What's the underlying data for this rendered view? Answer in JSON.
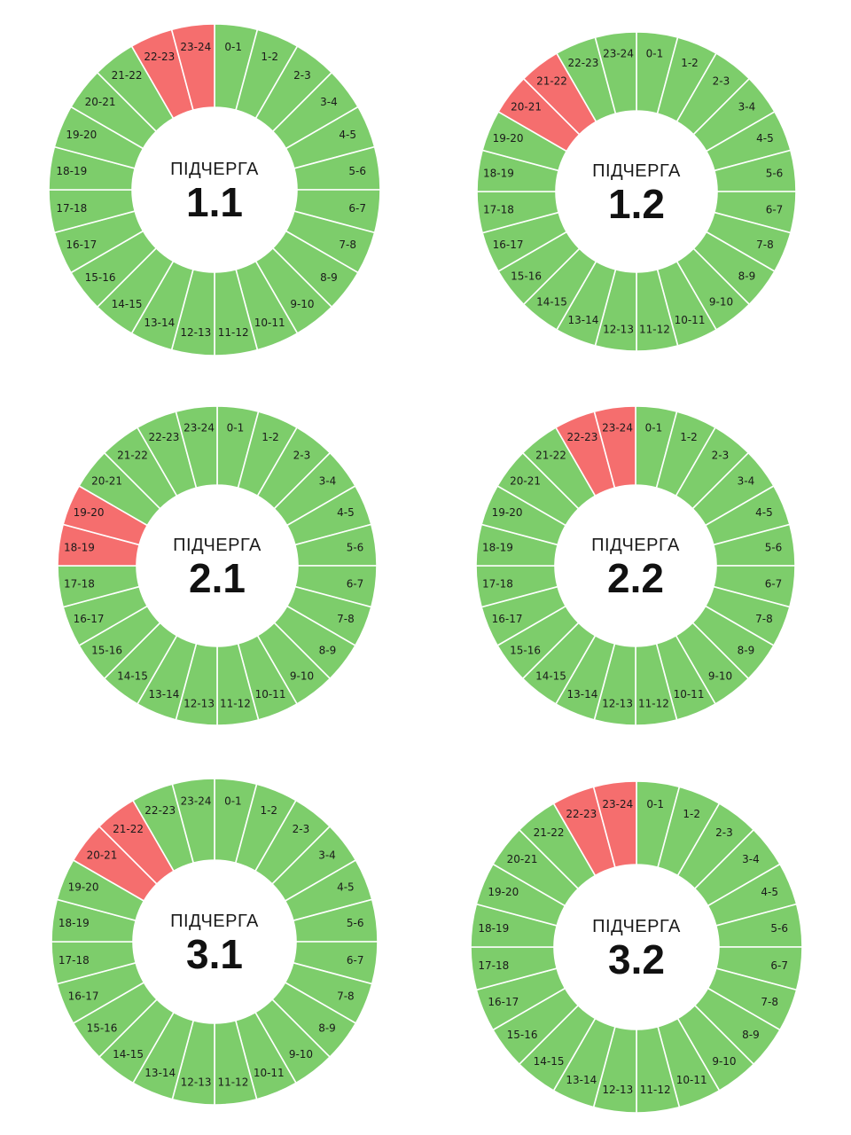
{
  "colors": {
    "on": "#7dcd6b",
    "off": "#f56e6e",
    "separator": "#ffffff"
  },
  "chart_data": [
    {
      "type": "donut",
      "center_label": "ПІДЧЕРГА",
      "queue": "1.1",
      "segments": [
        "0-1",
        "1-2",
        "2-3",
        "3-4",
        "4-5",
        "5-6",
        "6-7",
        "7-8",
        "8-9",
        "9-10",
        "10-11",
        "11-12",
        "12-13",
        "13-14",
        "14-15",
        "15-16",
        "16-17",
        "17-18",
        "18-19",
        "19-20",
        "20-21",
        "21-22",
        "22-23",
        "23-24"
      ],
      "off_segments": [
        "22-23",
        "23-24"
      ]
    },
    {
      "type": "donut",
      "center_label": "ПІДЧЕРГА",
      "queue": "1.2",
      "segments": [
        "0-1",
        "1-2",
        "2-3",
        "3-4",
        "4-5",
        "5-6",
        "6-7",
        "7-8",
        "8-9",
        "9-10",
        "10-11",
        "11-12",
        "12-13",
        "13-14",
        "14-15",
        "15-16",
        "16-17",
        "17-18",
        "18-19",
        "19-20",
        "20-21",
        "21-22",
        "22-23",
        "23-24"
      ],
      "off_segments": [
        "20-21",
        "21-22"
      ]
    },
    {
      "type": "donut",
      "center_label": "ПІДЧЕРГА",
      "queue": "2.1",
      "segments": [
        "0-1",
        "1-2",
        "2-3",
        "3-4",
        "4-5",
        "5-6",
        "6-7",
        "7-8",
        "8-9",
        "9-10",
        "10-11",
        "11-12",
        "12-13",
        "13-14",
        "14-15",
        "15-16",
        "16-17",
        "17-18",
        "18-19",
        "19-20",
        "20-21",
        "21-22",
        "22-23",
        "23-24"
      ],
      "off_segments": [
        "18-19",
        "19-20"
      ]
    },
    {
      "type": "donut",
      "center_label": "ПІДЧЕРГА",
      "queue": "2.2",
      "segments": [
        "0-1",
        "1-2",
        "2-3",
        "3-4",
        "4-5",
        "5-6",
        "6-7",
        "7-8",
        "8-9",
        "9-10",
        "10-11",
        "11-12",
        "12-13",
        "13-14",
        "14-15",
        "15-16",
        "16-17",
        "17-18",
        "18-19",
        "19-20",
        "20-21",
        "21-22",
        "22-23",
        "23-24"
      ],
      "off_segments": [
        "22-23",
        "23-24"
      ]
    },
    {
      "type": "donut",
      "center_label": "ПІДЧЕРГА",
      "queue": "3.1",
      "segments": [
        "0-1",
        "1-2",
        "2-3",
        "3-4",
        "4-5",
        "5-6",
        "6-7",
        "7-8",
        "8-9",
        "9-10",
        "10-11",
        "11-12",
        "12-13",
        "13-14",
        "14-15",
        "15-16",
        "16-17",
        "17-18",
        "18-19",
        "19-20",
        "20-21",
        "21-22",
        "22-23",
        "23-24"
      ],
      "off_segments": [
        "20-21",
        "21-22"
      ]
    },
    {
      "type": "donut",
      "center_label": "ПІДЧЕРГА",
      "queue": "3.2",
      "segments": [
        "0-1",
        "1-2",
        "2-3",
        "3-4",
        "4-5",
        "5-6",
        "6-7",
        "7-8",
        "8-9",
        "9-10",
        "10-11",
        "11-12",
        "12-13",
        "13-14",
        "14-15",
        "15-16",
        "16-17",
        "17-18",
        "18-19",
        "19-20",
        "20-21",
        "21-22",
        "22-23",
        "23-24"
      ],
      "off_segments": [
        "22-23",
        "23-24"
      ]
    }
  ]
}
